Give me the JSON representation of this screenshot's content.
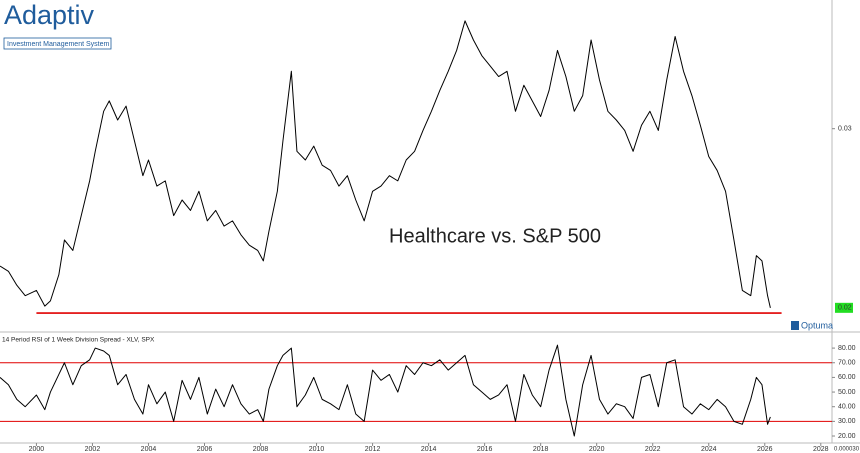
{
  "branding": {
    "logo": "Adaptiv",
    "tagline": "Investment Management System",
    "vendor": "Optuma"
  },
  "chart_data": [
    {
      "type": "line",
      "annotation": "Healthcare vs. S&P 500",
      "color": "#000000",
      "x": [
        1998.7,
        1999.0,
        1999.3,
        1999.6,
        2000.0,
        2000.3,
        2000.5,
        2000.8,
        2001.0,
        2001.3,
        2001.6,
        2001.9,
        2002.1,
        2002.4,
        2002.6,
        2002.9,
        2003.2,
        2003.5,
        2003.8,
        2004.0,
        2004.3,
        2004.6,
        2004.9,
        2005.2,
        2005.5,
        2005.8,
        2006.1,
        2006.4,
        2006.7,
        2007.0,
        2007.3,
        2007.6,
        2007.9,
        2008.1,
        2008.3,
        2008.6,
        2008.8,
        2009.1,
        2009.3,
        2009.6,
        2009.9,
        2010.2,
        2010.5,
        2010.8,
        2011.1,
        2011.4,
        2011.7,
        2012.0,
        2012.3,
        2012.6,
        2012.9,
        2013.2,
        2013.5,
        2013.8,
        2014.1,
        2014.4,
        2014.7,
        2015.0,
        2015.3,
        2015.6,
        2015.9,
        2016.2,
        2016.5,
        2016.8,
        2017.1,
        2017.4,
        2017.7,
        2018.0,
        2018.3,
        2018.6,
        2018.9,
        2019.2,
        2019.5,
        2019.8,
        2020.1,
        2020.4,
        2020.7,
        2021.0,
        2021.3,
        2021.6,
        2021.9,
        2022.2,
        2022.5,
        2022.8,
        2023.1,
        2023.4,
        2023.7,
        2024.0,
        2024.3,
        2024.6,
        2024.9,
        2025.2,
        2025.5,
        2025.7,
        2025.9,
        2026.1,
        2026.2
      ],
      "values": [
        0.0221,
        0.0218,
        0.021,
        0.0204,
        0.0207,
        0.0198,
        0.0201,
        0.0216,
        0.0236,
        0.023,
        0.025,
        0.027,
        0.0287,
        0.031,
        0.0316,
        0.0305,
        0.0313,
        0.0293,
        0.0273,
        0.0282,
        0.0267,
        0.027,
        0.025,
        0.0259,
        0.0253,
        0.0264,
        0.0247,
        0.0253,
        0.0244,
        0.0247,
        0.0239,
        0.0233,
        0.023,
        0.0224,
        0.0241,
        0.0264,
        0.0293,
        0.0333,
        0.0287,
        0.0282,
        0.029,
        0.0279,
        0.0276,
        0.0267,
        0.0273,
        0.0259,
        0.0247,
        0.0264,
        0.0267,
        0.0273,
        0.027,
        0.0282,
        0.0287,
        0.0299,
        0.031,
        0.0322,
        0.0333,
        0.0345,
        0.0362,
        0.0351,
        0.0342,
        0.0336,
        0.033,
        0.0333,
        0.031,
        0.0325,
        0.0316,
        0.0307,
        0.0322,
        0.0345,
        0.033,
        0.031,
        0.0319,
        0.0351,
        0.0328,
        0.031,
        0.0305,
        0.0299,
        0.0287,
        0.0302,
        0.031,
        0.0299,
        0.0328,
        0.0353,
        0.0333,
        0.0319,
        0.0302,
        0.0284,
        0.0276,
        0.0264,
        0.0236,
        0.0207,
        0.0204,
        0.0227,
        0.0224,
        0.0204,
        0.0197
      ],
      "xlim": [
        1998.7,
        2028.4
      ],
      "ylim": [
        0.019,
        0.0374
      ],
      "yticks": [
        0.03
      ],
      "last_value_label": "0.02",
      "last_value_color": "#22dd22",
      "support_line": {
        "value": 0.0194,
        "x": [
          2000,
          2026.6
        ],
        "color": "#e00000"
      }
    },
    {
      "type": "line",
      "title": "14 Period RSI of 1 Week Division Spread - XLV, SPX",
      "color": "#000000",
      "x": [
        1998.7,
        1999.0,
        1999.3,
        1999.6,
        2000.0,
        2000.3,
        2000.5,
        2000.8,
        2001.0,
        2001.3,
        2001.6,
        2001.9,
        2002.1,
        2002.4,
        2002.6,
        2002.9,
        2003.2,
        2003.5,
        2003.8,
        2004.0,
        2004.3,
        2004.6,
        2004.9,
        2005.2,
        2005.5,
        2005.8,
        2006.1,
        2006.4,
        2006.7,
        2007.0,
        2007.3,
        2007.6,
        2007.9,
        2008.1,
        2008.3,
        2008.6,
        2008.8,
        2009.1,
        2009.3,
        2009.6,
        2009.9,
        2010.2,
        2010.5,
        2010.8,
        2011.1,
        2011.4,
        2011.7,
        2012.0,
        2012.3,
        2012.6,
        2012.9,
        2013.2,
        2013.5,
        2013.8,
        2014.1,
        2014.4,
        2014.7,
        2015.0,
        2015.3,
        2015.6,
        2015.9,
        2016.2,
        2016.5,
        2016.8,
        2017.1,
        2017.4,
        2017.7,
        2018.0,
        2018.3,
        2018.6,
        2018.9,
        2019.2,
        2019.5,
        2019.8,
        2020.1,
        2020.4,
        2020.7,
        2021.0,
        2021.3,
        2021.6,
        2021.9,
        2022.2,
        2022.5,
        2022.8,
        2023.1,
        2023.4,
        2023.7,
        2024.0,
        2024.3,
        2024.6,
        2024.9,
        2025.2,
        2025.5,
        2025.7,
        2025.9,
        2026.1,
        2026.2
      ],
      "values": [
        60,
        55,
        45,
        40,
        48,
        38,
        50,
        62,
        70,
        55,
        68,
        72,
        80,
        78,
        75,
        55,
        62,
        45,
        35,
        55,
        42,
        50,
        30,
        58,
        45,
        60,
        35,
        52,
        40,
        55,
        42,
        35,
        38,
        30,
        52,
        68,
        75,
        80,
        40,
        48,
        60,
        45,
        42,
        38,
        55,
        35,
        30,
        65,
        58,
        62,
        50,
        68,
        62,
        70,
        68,
        72,
        65,
        70,
        75,
        55,
        50,
        45,
        48,
        55,
        30,
        62,
        48,
        40,
        65,
        82,
        45,
        20,
        55,
        75,
        45,
        35,
        42,
        40,
        32,
        60,
        62,
        40,
        70,
        72,
        40,
        35,
        42,
        38,
        45,
        40,
        30,
        28,
        45,
        60,
        55,
        28,
        33
      ],
      "xlim": [
        1998.7,
        2028.4
      ],
      "ylim": [
        16.6,
        90.3
      ],
      "yticks": [
        {
          "value": 20,
          "label": "20.00"
        },
        {
          "value": 30,
          "label": "30.00"
        },
        {
          "value": 40,
          "label": "40.00"
        },
        {
          "value": 50,
          "label": "50.00"
        },
        {
          "value": 60,
          "label": "60.00"
        },
        {
          "value": 70,
          "label": "70.00"
        },
        {
          "value": 80,
          "label": "80.00"
        }
      ],
      "reference_lines": [
        70,
        30
      ],
      "reference_color": "#e00000",
      "xticks": [
        2000,
        2002,
        2004,
        2006,
        2008,
        2010,
        2012,
        2014,
        2016,
        2018,
        2020,
        2022,
        2024,
        2026,
        2028
      ],
      "corner_label": "0.000030"
    }
  ]
}
